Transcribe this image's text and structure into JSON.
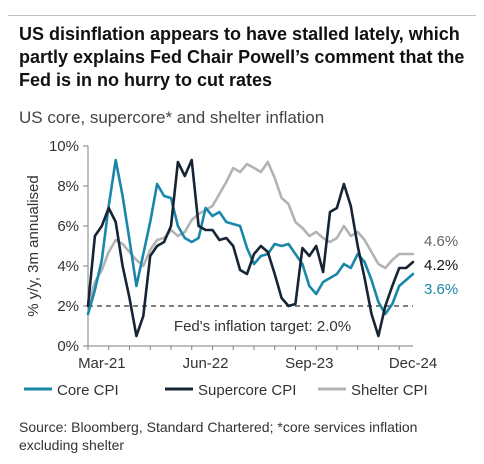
{
  "header": {
    "title": "US disinflation appears to have stalled lately, which partly explains Fed Chair Powell’s comment that the Fed is in no hurry to cut rates",
    "subtitle": "US core, supercore* and shelter inflation"
  },
  "footer": {
    "source": "Source: Bloomberg, Standard Chartered; *core services inflation excluding shelter"
  },
  "colors": {
    "core": "#1a87a8",
    "supercore": "#172434",
    "shelter": "#b3b3b3",
    "axis": "#7f7f7f",
    "text": "#333333"
  },
  "chart_data": {
    "type": "line",
    "ylabel": "% y/y, 3m annualised",
    "ylim": [
      0,
      10
    ],
    "yticks": [
      0,
      2,
      4,
      6,
      8,
      10
    ],
    "ytick_labels": [
      "0%",
      "2%",
      "4%",
      "6%",
      "8%",
      "10%"
    ],
    "xlim": [
      "2021-01",
      "2024-12"
    ],
    "xtick_labels": [
      {
        "date": "2021-03",
        "label": "Mar-21"
      },
      {
        "date": "2022-06",
        "label": "Jun-22"
      },
      {
        "date": "2023-09",
        "label": "Sep-23"
      },
      {
        "date": "2024-12",
        "label": "Dec-24"
      }
    ],
    "reference_line": {
      "value": 2.0,
      "label": "Fed's inflation target: 2.0%",
      "style": "dashed"
    },
    "grid": false,
    "legend_position": "bottom",
    "end_labels": [
      {
        "series": "Shelter CPI",
        "text": "4.6%"
      },
      {
        "series": "Supercore CPI",
        "text": "4.2%"
      },
      {
        "series": "Core CPI",
        "text": "3.6%"
      }
    ],
    "series": [
      {
        "name": "Core CPI",
        "points": [
          [
            "2021-01",
            1.6
          ],
          [
            "2021-02",
            2.8
          ],
          [
            "2021-03",
            4.3
          ],
          [
            "2021-04",
            7.0
          ],
          [
            "2021-05",
            9.3
          ],
          [
            "2021-06",
            7.5
          ],
          [
            "2021-07",
            5.3
          ],
          [
            "2021-08",
            3.0
          ],
          [
            "2021-09",
            4.6
          ],
          [
            "2021-10",
            6.2
          ],
          [
            "2021-11",
            8.1
          ],
          [
            "2021-12",
            7.5
          ],
          [
            "2022-01",
            7.4
          ],
          [
            "2022-02",
            6.0
          ],
          [
            "2022-03",
            5.4
          ],
          [
            "2022-04",
            5.2
          ],
          [
            "2022-05",
            5.4
          ],
          [
            "2022-06",
            6.9
          ],
          [
            "2022-07",
            6.5
          ],
          [
            "2022-08",
            6.7
          ],
          [
            "2022-09",
            6.2
          ],
          [
            "2022-10",
            6.1
          ],
          [
            "2022-11",
            6.0
          ],
          [
            "2022-12",
            4.9
          ],
          [
            "2023-01",
            4.1
          ],
          [
            "2023-02",
            4.5
          ],
          [
            "2023-03",
            4.6
          ],
          [
            "2023-04",
            5.1
          ],
          [
            "2023-05",
            5.0
          ],
          [
            "2023-06",
            5.1
          ],
          [
            "2023-07",
            4.6
          ],
          [
            "2023-08",
            4.1
          ],
          [
            "2023-09",
            3.0
          ],
          [
            "2023-10",
            2.6
          ],
          [
            "2023-11",
            3.2
          ],
          [
            "2023-12",
            3.4
          ],
          [
            "2024-01",
            3.6
          ],
          [
            "2024-02",
            4.1
          ],
          [
            "2024-03",
            3.9
          ],
          [
            "2024-04",
            4.6
          ],
          [
            "2024-05",
            4.2
          ],
          [
            "2024-06",
            3.3
          ],
          [
            "2024-07",
            2.2
          ],
          [
            "2024-08",
            1.6
          ],
          [
            "2024-09",
            2.1
          ],
          [
            "2024-10",
            3.0
          ],
          [
            "2024-11",
            3.3
          ],
          [
            "2024-12",
            3.6
          ]
        ]
      },
      {
        "name": "Supercore CPI",
        "points": [
          [
            "2021-01",
            2.0
          ],
          [
            "2021-02",
            5.5
          ],
          [
            "2021-03",
            6.0
          ],
          [
            "2021-04",
            6.9
          ],
          [
            "2021-05",
            6.2
          ],
          [
            "2021-06",
            4.0
          ],
          [
            "2021-07",
            2.4
          ],
          [
            "2021-08",
            0.5
          ],
          [
            "2021-09",
            1.5
          ],
          [
            "2021-10",
            4.5
          ],
          [
            "2021-11",
            5.0
          ],
          [
            "2021-12",
            5.2
          ],
          [
            "2022-01",
            6.0
          ],
          [
            "2022-02",
            9.2
          ],
          [
            "2022-03",
            8.5
          ],
          [
            "2022-04",
            9.3
          ],
          [
            "2022-05",
            6.0
          ],
          [
            "2022-06",
            5.8
          ],
          [
            "2022-07",
            5.8
          ],
          [
            "2022-08",
            5.3
          ],
          [
            "2022-09",
            5.4
          ],
          [
            "2022-10",
            5.0
          ],
          [
            "2022-11",
            3.8
          ],
          [
            "2022-12",
            3.6
          ],
          [
            "2023-01",
            4.6
          ],
          [
            "2023-02",
            5.0
          ],
          [
            "2023-03",
            4.7
          ],
          [
            "2023-04",
            3.6
          ],
          [
            "2023-05",
            2.4
          ],
          [
            "2023-06",
            2.0
          ],
          [
            "2023-07",
            2.1
          ],
          [
            "2023-08",
            4.9
          ],
          [
            "2023-09",
            4.5
          ],
          [
            "2023-10",
            5.0
          ],
          [
            "2023-11",
            3.7
          ],
          [
            "2023-12",
            6.7
          ],
          [
            "2024-01",
            6.9
          ],
          [
            "2024-02",
            8.1
          ],
          [
            "2024-03",
            7.0
          ],
          [
            "2024-04",
            5.0
          ],
          [
            "2024-05",
            3.4
          ],
          [
            "2024-06",
            1.6
          ],
          [
            "2024-07",
            0.5
          ],
          [
            "2024-08",
            2.0
          ],
          [
            "2024-09",
            3.0
          ],
          [
            "2024-10",
            3.9
          ],
          [
            "2024-11",
            3.9
          ],
          [
            "2024-12",
            4.2
          ]
        ]
      },
      {
        "name": "Shelter CPI",
        "points": [
          [
            "2021-01",
            2.0
          ],
          [
            "2021-02",
            3.2
          ],
          [
            "2021-03",
            3.8
          ],
          [
            "2021-04",
            4.7
          ],
          [
            "2021-05",
            5.3
          ],
          [
            "2021-06",
            5.1
          ],
          [
            "2021-07",
            4.7
          ],
          [
            "2021-08",
            4.3
          ],
          [
            "2021-09",
            4.0
          ],
          [
            "2021-10",
            4.8
          ],
          [
            "2021-11",
            5.3
          ],
          [
            "2021-12",
            5.4
          ],
          [
            "2022-01",
            5.8
          ],
          [
            "2022-02",
            5.5
          ],
          [
            "2022-03",
            5.7
          ],
          [
            "2022-04",
            6.3
          ],
          [
            "2022-05",
            6.6
          ],
          [
            "2022-06",
            6.8
          ],
          [
            "2022-07",
            7.0
          ],
          [
            "2022-08",
            7.6
          ],
          [
            "2022-09",
            8.2
          ],
          [
            "2022-10",
            8.9
          ],
          [
            "2022-11",
            8.7
          ],
          [
            "2022-12",
            9.1
          ],
          [
            "2023-01",
            8.9
          ],
          [
            "2023-02",
            8.7
          ],
          [
            "2023-03",
            9.2
          ],
          [
            "2023-04",
            8.4
          ],
          [
            "2023-05",
            7.4
          ],
          [
            "2023-06",
            7.1
          ],
          [
            "2023-07",
            6.2
          ],
          [
            "2023-08",
            5.9
          ],
          [
            "2023-09",
            5.5
          ],
          [
            "2023-10",
            5.7
          ],
          [
            "2023-11",
            5.4
          ],
          [
            "2023-12",
            5.2
          ],
          [
            "2024-01",
            5.4
          ],
          [
            "2024-02",
            6.0
          ],
          [
            "2024-03",
            5.5
          ],
          [
            "2024-04",
            5.7
          ],
          [
            "2024-05",
            5.3
          ],
          [
            "2024-06",
            4.7
          ],
          [
            "2024-07",
            4.1
          ],
          [
            "2024-08",
            3.9
          ],
          [
            "2024-09",
            4.3
          ],
          [
            "2024-10",
            4.6
          ],
          [
            "2024-11",
            4.6
          ],
          [
            "2024-12",
            4.6
          ]
        ]
      }
    ]
  }
}
